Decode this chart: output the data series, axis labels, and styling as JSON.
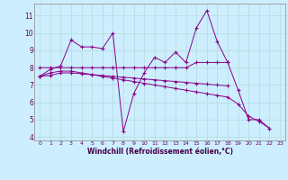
{
  "xlabel": "Windchill (Refroidissement éolien,°C)",
  "xlim": [
    -0.5,
    23.5
  ],
  "ylim": [
    3.8,
    11.7
  ],
  "yticks": [
    4,
    5,
    6,
    7,
    8,
    9,
    10,
    11
  ],
  "xticks": [
    0,
    1,
    2,
    3,
    4,
    5,
    6,
    7,
    8,
    9,
    10,
    11,
    12,
    13,
    14,
    15,
    16,
    17,
    18,
    19,
    20,
    21,
    22,
    23
  ],
  "background_color": "#cceeff",
  "line_color": "#880088",
  "grid_color": "#aadddd",
  "series": [
    {
      "x": [
        0,
        1,
        2,
        3,
        4,
        5,
        6,
        7,
        8,
        9,
        10,
        11,
        12,
        13,
        14,
        15,
        16,
        17,
        18,
        19,
        20,
        21,
        22
      ],
      "y": [
        7.5,
        7.9,
        8.1,
        9.6,
        9.2,
        9.2,
        9.1,
        10.0,
        4.3,
        6.5,
        7.7,
        8.6,
        8.3,
        8.9,
        8.3,
        10.3,
        11.3,
        9.5,
        8.3,
        6.7,
        5.0,
        5.0,
        4.5
      ]
    },
    {
      "x": [
        0,
        1,
        2,
        3,
        4,
        5,
        6,
        7,
        8,
        9,
        10,
        11,
        12,
        13,
        14,
        15,
        16,
        17,
        18
      ],
      "y": [
        8.0,
        8.0,
        8.0,
        8.0,
        8.0,
        8.0,
        8.0,
        8.0,
        8.0,
        8.0,
        8.0,
        8.0,
        8.0,
        8.0,
        8.0,
        8.3,
        8.3,
        8.3,
        8.3
      ]
    },
    {
      "x": [
        0,
        1,
        2,
        3,
        4,
        5,
        6,
        7,
        8,
        9,
        10,
        11,
        12,
        13,
        14,
        15,
        16,
        17,
        18,
        19,
        20,
        21,
        22
      ],
      "y": [
        7.5,
        7.7,
        7.8,
        7.8,
        7.7,
        7.6,
        7.5,
        7.4,
        7.3,
        7.2,
        7.1,
        7.0,
        6.9,
        6.8,
        6.7,
        6.6,
        6.5,
        6.4,
        6.3,
        5.9,
        5.2,
        4.9,
        4.5
      ]
    },
    {
      "x": [
        0,
        1,
        2,
        3,
        4,
        5,
        6,
        7,
        8,
        9,
        10,
        11,
        12,
        13,
        14,
        15,
        16,
        17,
        18
      ],
      "y": [
        7.5,
        7.55,
        7.7,
        7.7,
        7.65,
        7.6,
        7.55,
        7.5,
        7.45,
        7.4,
        7.35,
        7.3,
        7.25,
        7.2,
        7.15,
        7.1,
        7.05,
        7.0,
        6.95
      ]
    }
  ]
}
